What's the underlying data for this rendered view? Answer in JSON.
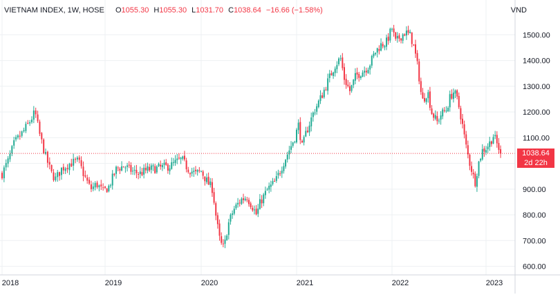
{
  "header": {
    "symbol": "VIETNAM INDEX, 1W, HOSE",
    "o_label": "O",
    "o_value": "1055.30",
    "h_label": "H",
    "h_value": "1055.30",
    "l_label": "L",
    "l_value": "1031.70",
    "c_label": "C",
    "c_value": "1038.64",
    "change": "−16.66 (−1.58%)",
    "unit": "VND"
  },
  "last_price": {
    "price": "1038.64",
    "countdown": "2d 22h",
    "value": 1038.64
  },
  "colors": {
    "up": "#22ab94",
    "down": "#f23645",
    "grid": "#eef0f3",
    "text": "#131722"
  },
  "chart_data": {
    "type": "candlestick",
    "title": "VIETNAM INDEX, 1W, HOSE",
    "ylabel": "VND",
    "ylim": [
      580,
      1560
    ],
    "y_ticks": [
      600,
      700,
      800,
      900,
      1000,
      1100,
      1200,
      1300,
      1400,
      1500
    ],
    "y_tick_labels": [
      "600.00",
      "700.00",
      "800.00",
      "900.00",
      "1000.00",
      "1100.00",
      "1200.00",
      "1300.00",
      "1400.00",
      "1500.00"
    ],
    "x_ticks": [
      "2018",
      "2019",
      "2020",
      "2021",
      "2022",
      "2023"
    ],
    "xlim": [
      2018.0,
      2023.3
    ],
    "grid": true,
    "close_path": [
      [
        2018.0,
        960
      ],
      [
        2018.06,
        1010
      ],
      [
        2018.12,
        1080
      ],
      [
        2018.2,
        1120
      ],
      [
        2018.28,
        1170
      ],
      [
        2018.32,
        1200
      ],
      [
        2018.36,
        1120
      ],
      [
        2018.42,
        1030
      ],
      [
        2018.48,
        960
      ],
      [
        2018.52,
        940
      ],
      [
        2018.58,
        980
      ],
      [
        2018.66,
        1000
      ],
      [
        2018.74,
        1010
      ],
      [
        2018.8,
        950
      ],
      [
        2018.86,
        900
      ],
      [
        2018.92,
        920
      ],
      [
        2018.98,
        890
      ],
      [
        2019.04,
        910
      ],
      [
        2019.12,
        980
      ],
      [
        2019.2,
        990
      ],
      [
        2019.28,
        970
      ],
      [
        2019.36,
        960
      ],
      [
        2019.44,
        975
      ],
      [
        2019.52,
        980
      ],
      [
        2019.6,
        985
      ],
      [
        2019.68,
        990
      ],
      [
        2019.76,
        1010
      ],
      [
        2019.8,
        1015
      ],
      [
        2019.86,
        980
      ],
      [
        2019.94,
        960
      ],
      [
        2020.0,
        970
      ],
      [
        2020.06,
        930
      ],
      [
        2020.12,
        900
      ],
      [
        2020.16,
        780
      ],
      [
        2020.2,
        690
      ],
      [
        2020.24,
        670
      ],
      [
        2020.28,
        760
      ],
      [
        2020.34,
        820
      ],
      [
        2020.42,
        860
      ],
      [
        2020.48,
        870
      ],
      [
        2020.54,
        830
      ],
      [
        2020.58,
        800
      ],
      [
        2020.62,
        850
      ],
      [
        2020.7,
        900
      ],
      [
        2020.78,
        930
      ],
      [
        2020.86,
        1000
      ],
      [
        2020.92,
        1050
      ],
      [
        2020.98,
        1100
      ],
      [
        2021.02,
        1150
      ],
      [
        2021.06,
        1060
      ],
      [
        2021.1,
        1120
      ],
      [
        2021.18,
        1200
      ],
      [
        2021.26,
        1260
      ],
      [
        2021.34,
        1330
      ],
      [
        2021.4,
        1380
      ],
      [
        2021.46,
        1410
      ],
      [
        2021.5,
        1330
      ],
      [
        2021.56,
        1280
      ],
      [
        2021.62,
        1340
      ],
      [
        2021.7,
        1360
      ],
      [
        2021.76,
        1380
      ],
      [
        2021.82,
        1430
      ],
      [
        2021.88,
        1460
      ],
      [
        2021.94,
        1470
      ],
      [
        2022.0,
        1525
      ],
      [
        2022.04,
        1470
      ],
      [
        2022.08,
        1490
      ],
      [
        2022.14,
        1510
      ],
      [
        2022.2,
        1495
      ],
      [
        2022.24,
        1440
      ],
      [
        2022.28,
        1360
      ],
      [
        2022.32,
        1240
      ],
      [
        2022.38,
        1280
      ],
      [
        2022.42,
        1200
      ],
      [
        2022.48,
        1160
      ],
      [
        2022.52,
        1190
      ],
      [
        2022.58,
        1210
      ],
      [
        2022.62,
        1260
      ],
      [
        2022.66,
        1280
      ],
      [
        2022.7,
        1240
      ],
      [
        2022.74,
        1170
      ],
      [
        2022.78,
        1080
      ],
      [
        2022.82,
        1010
      ],
      [
        2022.86,
        960
      ],
      [
        2022.88,
        920
      ],
      [
        2022.92,
        1000
      ],
      [
        2022.96,
        1050
      ],
      [
        2023.0,
        1060
      ],
      [
        2023.04,
        1080
      ],
      [
        2023.08,
        1110
      ],
      [
        2023.12,
        1070
      ],
      [
        2023.16,
        1040
      ]
    ]
  }
}
